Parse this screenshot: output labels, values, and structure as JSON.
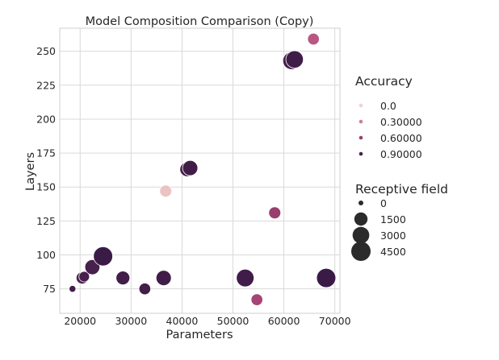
{
  "chart_data": {
    "type": "scatter",
    "title": "Model Composition Comparison (Copy)",
    "xlabel": "Parameters",
    "ylabel": "Layers",
    "xlim": [
      16000,
      71000
    ],
    "ylim": [
      57,
      267
    ],
    "x_ticks": [
      20000,
      30000,
      40000,
      50000,
      60000,
      70000
    ],
    "y_ticks": [
      75,
      100,
      125,
      150,
      175,
      200,
      225,
      250
    ],
    "grid": true,
    "hue_range": [
      0.0,
      1.0
    ],
    "color_low": "#f2d1cc",
    "color_mid": "#b3497a",
    "color_high": "#2d1640",
    "legend_placement": "right",
    "legend_hue": {
      "title": "Accuracy",
      "entries": [
        {
          "label": "0.0",
          "value": 0.0
        },
        {
          "label": "0.30000",
          "value": 0.3
        },
        {
          "label": "0.60000",
          "value": 0.6
        },
        {
          "label": "0.90000",
          "value": 0.9
        }
      ]
    },
    "legend_size": {
      "title": "Receptive field",
      "entries": [
        {
          "label": "0",
          "value": 0
        },
        {
          "label": "1500",
          "value": 1500
        },
        {
          "label": "3000",
          "value": 3000
        },
        {
          "label": "4500",
          "value": 4500
        }
      ]
    },
    "points": [
      {
        "x": 18500,
        "y": 75,
        "accuracy": 0.92,
        "receptive_field": 80
      },
      {
        "x": 20400,
        "y": 83,
        "accuracy": 0.88,
        "receptive_field": 1100
      },
      {
        "x": 20800,
        "y": 84,
        "accuracy": 0.9,
        "receptive_field": 700
      },
      {
        "x": 22400,
        "y": 91,
        "accuracy": 0.9,
        "receptive_field": 2200
      },
      {
        "x": 24500,
        "y": 99,
        "accuracy": 0.95,
        "receptive_field": 4400
      },
      {
        "x": 28400,
        "y": 83,
        "accuracy": 0.92,
        "receptive_field": 1700
      },
      {
        "x": 32700,
        "y": 75,
        "accuracy": 0.92,
        "receptive_field": 1000
      },
      {
        "x": 36400,
        "y": 83,
        "accuracy": 0.93,
        "receptive_field": 2300
      },
      {
        "x": 36800,
        "y": 147,
        "accuracy": 0.05,
        "receptive_field": 1100
      },
      {
        "x": 41000,
        "y": 163,
        "accuracy": 0.9,
        "receptive_field": 2000
      },
      {
        "x": 41600,
        "y": 164,
        "accuracy": 0.93,
        "receptive_field": 2300
      },
      {
        "x": 52400,
        "y": 83,
        "accuracy": 0.93,
        "receptive_field": 3500
      },
      {
        "x": 54700,
        "y": 67,
        "accuracy": 0.55,
        "receptive_field": 1000
      },
      {
        "x": 58200,
        "y": 131,
        "accuracy": 0.6,
        "receptive_field": 1100
      },
      {
        "x": 61500,
        "y": 243,
        "accuracy": 0.9,
        "receptive_field": 3400
      },
      {
        "x": 62100,
        "y": 244,
        "accuracy": 0.93,
        "receptive_field": 3400
      },
      {
        "x": 65800,
        "y": 259,
        "accuracy": 0.45,
        "receptive_field": 1000
      },
      {
        "x": 68300,
        "y": 83,
        "accuracy": 0.95,
        "receptive_field": 4400
      }
    ]
  }
}
